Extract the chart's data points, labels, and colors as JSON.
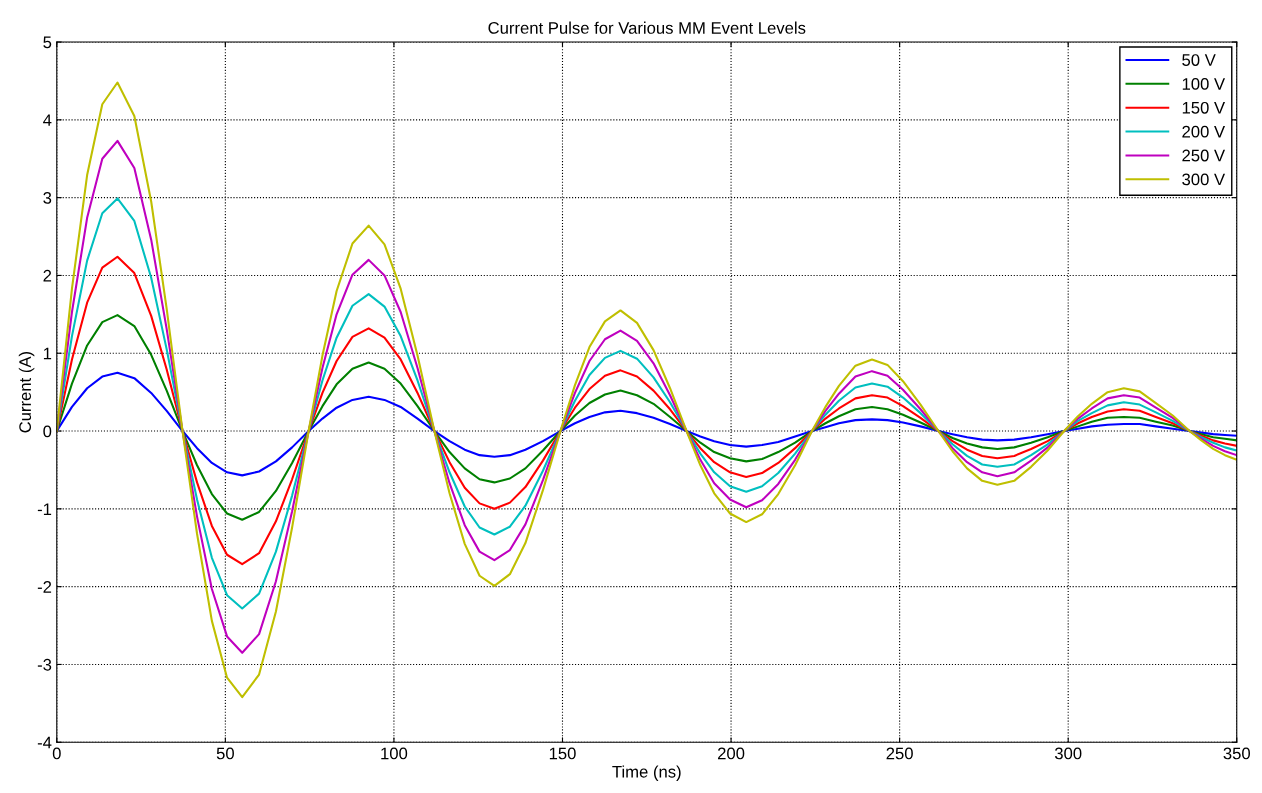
{
  "chart_data": {
    "type": "line",
    "title": "Current Pulse for Various MM Event Levels",
    "xlabel": "Time (ns)",
    "ylabel": "Current (A)",
    "x": [
      0,
      4.5,
      9,
      13.5,
      18,
      23,
      28,
      32.6,
      37.3,
      41.6,
      46,
      50.5,
      55,
      60,
      65,
      69.8,
      74.7,
      78.8,
      83,
      87.7,
      92.5,
      97.2,
      102,
      107,
      112,
      116.5,
      121,
      125.4,
      129.8,
      134.4,
      139,
      144.2,
      149.4,
      153.7,
      158,
      162.6,
      167.2,
      172.1,
      177,
      181.9,
      186.8,
      190.9,
      195,
      199.7,
      204.5,
      209.2,
      214,
      219,
      224,
      228,
      232,
      236.9,
      241.8,
      246.4,
      251,
      256.2,
      261.5,
      265.7,
      270,
      274.5,
      279,
      284,
      289,
      293.9,
      298.8,
      302.9,
      307,
      311.7,
      316.5,
      321.2,
      326,
      331,
      336,
      339.5,
      343,
      346.5,
      350
    ],
    "series": [
      {
        "name": "50 V",
        "color": "#0000ff",
        "values": [
          0,
          0.31,
          0.55,
          0.7,
          0.75,
          0.68,
          0.49,
          0.26,
          0,
          -0.22,
          -0.41,
          -0.53,
          -0.57,
          -0.52,
          -0.39,
          -0.21,
          0,
          0.16,
          0.3,
          0.4,
          0.44,
          0.4,
          0.31,
          0.16,
          0,
          -0.13,
          -0.24,
          -0.31,
          -0.33,
          -0.31,
          -0.24,
          -0.13,
          0,
          0.1,
          0.18,
          0.24,
          0.26,
          0.23,
          0.17,
          0.09,
          0,
          -0.07,
          -0.13,
          -0.18,
          -0.2,
          -0.18,
          -0.14,
          -0.07,
          0,
          0.05,
          0.1,
          0.14,
          0.15,
          0.14,
          0.11,
          0.06,
          0,
          -0.04,
          -0.08,
          -0.11,
          -0.12,
          -0.11,
          -0.08,
          -0.04,
          0,
          0.03,
          0.06,
          0.08,
          0.09,
          0.09,
          0.06,
          0.03,
          0,
          -0.02,
          -0.04,
          -0.05,
          -0.06
        ]
      },
      {
        "name": "100 V",
        "color": "#008000",
        "values": [
          0,
          0.61,
          1.1,
          1.4,
          1.49,
          1.35,
          0.98,
          0.52,
          0,
          -0.44,
          -0.81,
          -1.06,
          -1.14,
          -1.04,
          -0.77,
          -0.41,
          0,
          0.32,
          0.6,
          0.8,
          0.88,
          0.8,
          0.61,
          0.32,
          0,
          -0.27,
          -0.48,
          -0.62,
          -0.66,
          -0.61,
          -0.48,
          -0.25,
          0,
          0.2,
          0.36,
          0.47,
          0.52,
          0.46,
          0.35,
          0.18,
          0,
          -0.15,
          -0.27,
          -0.35,
          -0.39,
          -0.36,
          -0.27,
          -0.15,
          0,
          0.1,
          0.19,
          0.28,
          0.31,
          0.28,
          0.21,
          0.11,
          0,
          -0.09,
          -0.16,
          -0.21,
          -0.23,
          -0.21,
          -0.15,
          -0.08,
          0,
          0.06,
          0.12,
          0.17,
          0.18,
          0.17,
          0.12,
          0.07,
          0,
          -0.04,
          -0.08,
          -0.1,
          -0.12
        ]
      },
      {
        "name": "150 V",
        "color": "#ff0000",
        "values": [
          0,
          0.92,
          1.65,
          2.1,
          2.24,
          2.03,
          1.48,
          0.79,
          0,
          -0.66,
          -1.22,
          -1.59,
          -1.71,
          -1.57,
          -1.16,
          -0.62,
          0,
          0.49,
          0.9,
          1.21,
          1.32,
          1.2,
          0.92,
          0.49,
          0,
          -0.4,
          -0.73,
          -0.93,
          -1.0,
          -0.92,
          -0.72,
          -0.38,
          0,
          0.3,
          0.54,
          0.71,
          0.78,
          0.7,
          0.52,
          0.28,
          0,
          -0.22,
          -0.4,
          -0.53,
          -0.59,
          -0.54,
          -0.41,
          -0.22,
          0,
          0.16,
          0.29,
          0.42,
          0.46,
          0.43,
          0.32,
          0.17,
          0,
          -0.13,
          -0.24,
          -0.32,
          -0.35,
          -0.32,
          -0.23,
          -0.13,
          0,
          0.1,
          0.18,
          0.25,
          0.28,
          0.26,
          0.18,
          0.1,
          0,
          -0.06,
          -0.12,
          -0.16,
          -0.19
        ]
      },
      {
        "name": "200 V",
        "color": "#00bfbf",
        "values": [
          0,
          1.22,
          2.19,
          2.8,
          2.99,
          2.7,
          1.97,
          1.05,
          0,
          -0.88,
          -1.63,
          -2.11,
          -2.28,
          -2.09,
          -1.55,
          -0.83,
          0,
          0.65,
          1.2,
          1.61,
          1.76,
          1.6,
          1.22,
          0.65,
          0,
          -0.53,
          -0.97,
          -1.24,
          -1.33,
          -1.23,
          -0.96,
          -0.51,
          0,
          0.39,
          0.72,
          0.94,
          1.03,
          0.93,
          0.69,
          0.37,
          0,
          -0.29,
          -0.53,
          -0.71,
          -0.78,
          -0.71,
          -0.54,
          -0.29,
          0,
          0.21,
          0.39,
          0.56,
          0.61,
          0.57,
          0.43,
          0.23,
          0,
          -0.17,
          -0.32,
          -0.43,
          -0.46,
          -0.43,
          -0.31,
          -0.17,
          0,
          0.13,
          0.23,
          0.33,
          0.37,
          0.34,
          0.24,
          0.13,
          0,
          -0.08,
          -0.15,
          -0.21,
          -0.25
        ]
      },
      {
        "name": "250 V",
        "color": "#bf00bf",
        "values": [
          0,
          1.53,
          2.74,
          3.5,
          3.73,
          3.38,
          2.46,
          1.31,
          0,
          -1.1,
          -2.03,
          -2.64,
          -2.85,
          -2.61,
          -1.93,
          -1.03,
          0,
          0.81,
          1.5,
          2.01,
          2.2,
          2.0,
          1.53,
          0.81,
          0,
          -0.67,
          -1.21,
          -1.55,
          -1.66,
          -1.53,
          -1.2,
          -0.63,
          0,
          0.49,
          0.9,
          1.18,
          1.29,
          1.16,
          0.87,
          0.46,
          0,
          -0.37,
          -0.67,
          -0.88,
          -0.98,
          -0.89,
          -0.68,
          -0.37,
          0,
          0.26,
          0.48,
          0.7,
          0.77,
          0.71,
          0.53,
          0.28,
          0,
          -0.22,
          -0.4,
          -0.53,
          -0.58,
          -0.53,
          -0.38,
          -0.21,
          0,
          0.16,
          0.29,
          0.42,
          0.46,
          0.43,
          0.3,
          0.17,
          0,
          -0.1,
          -0.19,
          -0.26,
          -0.31
        ]
      },
      {
        "name": "300 V",
        "color": "#bfbf00",
        "values": [
          0,
          1.83,
          3.29,
          4.2,
          4.48,
          4.05,
          2.95,
          1.57,
          0,
          -1.32,
          -2.44,
          -3.17,
          -3.42,
          -3.13,
          -2.32,
          -1.24,
          0,
          0.97,
          1.8,
          2.41,
          2.64,
          2.4,
          1.83,
          0.97,
          0,
          -0.8,
          -1.45,
          -1.86,
          -1.99,
          -1.84,
          -1.44,
          -0.76,
          0,
          0.59,
          1.08,
          1.41,
          1.55,
          1.39,
          1.04,
          0.55,
          0,
          -0.44,
          -0.8,
          -1.06,
          -1.17,
          -1.07,
          -0.81,
          -0.44,
          0,
          0.31,
          0.58,
          0.84,
          0.92,
          0.85,
          0.64,
          0.34,
          0,
          -0.26,
          -0.48,
          -0.64,
          -0.69,
          -0.64,
          -0.46,
          -0.25,
          0,
          0.19,
          0.35,
          0.5,
          0.55,
          0.51,
          0.36,
          0.2,
          0,
          -0.12,
          -0.23,
          -0.31,
          -0.37
        ]
      }
    ],
    "xlim": [
      0,
      350
    ],
    "xticks": [
      0,
      50,
      100,
      150,
      200,
      250,
      300,
      350
    ],
    "ylim": [
      -4,
      5
    ],
    "yticks": [
      -4,
      -3,
      -2,
      -1,
      0,
      1,
      2,
      3,
      4,
      5
    ],
    "grid": true,
    "legend": "top right",
    "line_style": "solid",
    "marker": "none"
  }
}
